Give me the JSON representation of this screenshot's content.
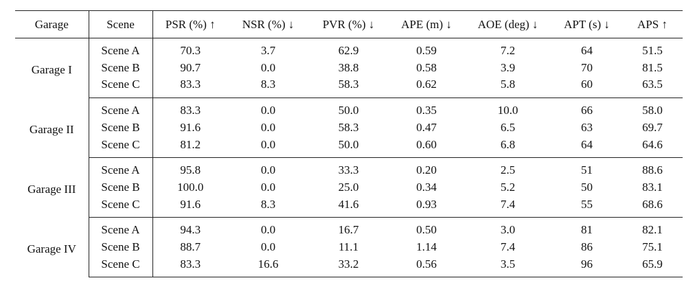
{
  "columns": [
    "Garage",
    "Scene",
    "PSR (%) ↑",
    "NSR (%) ↓",
    "PVR (%) ↓",
    "APE (m) ↓",
    "AOE (deg) ↓",
    "APT (s) ↓",
    "APS ↑"
  ],
  "groups": [
    {
      "garage": "Garage I",
      "rows": [
        [
          "Scene A",
          "70.3",
          "3.7",
          "62.9",
          "0.59",
          "7.2",
          "64",
          "51.5"
        ],
        [
          "Scene B",
          "90.7",
          "0.0",
          "38.8",
          "0.58",
          "3.9",
          "70",
          "81.5"
        ],
        [
          "Scene C",
          "83.3",
          "8.3",
          "58.3",
          "0.62",
          "5.8",
          "60",
          "63.5"
        ]
      ]
    },
    {
      "garage": "Garage II",
      "rows": [
        [
          "Scene A",
          "83.3",
          "0.0",
          "50.0",
          "0.35",
          "10.0",
          "66",
          "58.0"
        ],
        [
          "Scene B",
          "91.6",
          "0.0",
          "58.3",
          "0.47",
          "6.5",
          "63",
          "69.7"
        ],
        [
          "Scene C",
          "81.2",
          "0.0",
          "50.0",
          "0.60",
          "6.8",
          "64",
          "64.6"
        ]
      ]
    },
    {
      "garage": "Garage III",
      "rows": [
        [
          "Scene A",
          "95.8",
          "0.0",
          "33.3",
          "0.20",
          "2.5",
          "51",
          "88.6"
        ],
        [
          "Scene B",
          "100.0",
          "0.0",
          "25.0",
          "0.34",
          "5.2",
          "50",
          "83.1"
        ],
        [
          "Scene C",
          "91.6",
          "8.3",
          "41.6",
          "0.93",
          "7.4",
          "55",
          "68.6"
        ]
      ]
    },
    {
      "garage": "Garage IV",
      "rows": [
        [
          "Scene A",
          "94.3",
          "0.0",
          "16.7",
          "0.50",
          "3.0",
          "81",
          "82.1"
        ],
        [
          "Scene B",
          "88.7",
          "0.0",
          "11.1",
          "1.14",
          "7.4",
          "86",
          "75.1"
        ],
        [
          "Scene C",
          "83.3",
          "16.6",
          "33.2",
          "0.56",
          "3.5",
          "96",
          "65.9"
        ]
      ]
    }
  ]
}
